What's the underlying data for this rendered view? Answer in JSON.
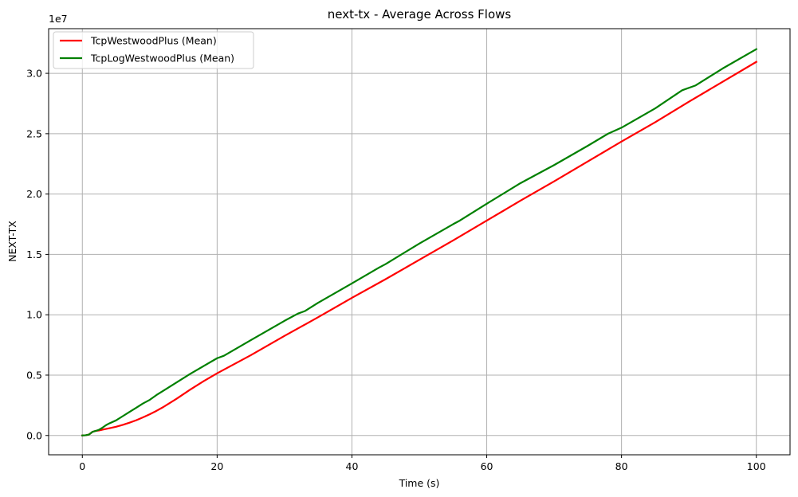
{
  "chart_data": {
    "type": "line",
    "title": "next-tx - Average Across Flows",
    "xlabel": "Time (s)",
    "ylabel": "NEXT-TX",
    "y_offset_label": "1e7",
    "y_scale": 10000000,
    "xlim": [
      -5,
      105
    ],
    "ylim": [
      -1600000,
      33700000
    ],
    "x_ticks": [
      0,
      20,
      40,
      60,
      80,
      100
    ],
    "x_tick_labels": [
      "0",
      "20",
      "40",
      "60",
      "80",
      "100"
    ],
    "y_ticks": [
      0,
      5000000,
      10000000,
      15000000,
      20000000,
      25000000,
      30000000
    ],
    "y_tick_labels": [
      "0.0",
      "0.5",
      "1.0",
      "1.5",
      "2.0",
      "2.5",
      "3.0"
    ],
    "grid": true,
    "legend_position": "top-left",
    "series": [
      {
        "name": "TcpWestwoodPlus (Mean)",
        "color": "#ff0000",
        "x": [
          0,
          0.5,
          1,
          1.5,
          2,
          2.5,
          3,
          4,
          5,
          6,
          7,
          8,
          9,
          10,
          11,
          12,
          14,
          16,
          18,
          20,
          25,
          30,
          35,
          40,
          45,
          50,
          55,
          60,
          65,
          70,
          75,
          80,
          85,
          90,
          95,
          100
        ],
        "y": [
          0,
          20000,
          80000,
          300000,
          380000,
          420000,
          480000,
          600000,
          720000,
          880000,
          1060000,
          1260000,
          1500000,
          1760000,
          2040000,
          2350000,
          3050000,
          3800000,
          4500000,
          5150000,
          6650000,
          8250000,
          9800000,
          11400000,
          12950000,
          14550000,
          16150000,
          17800000,
          19450000,
          21050000,
          22700000,
          24350000,
          25950000,
          27650000,
          29300000,
          30950000
        ]
      },
      {
        "name": "TcpLogWestwoodPlus (Mean)",
        "color": "#008000",
        "x": [
          0,
          0.5,
          1,
          1.5,
          2,
          2.5,
          3,
          3.5,
          4,
          5,
          6,
          7,
          8,
          9,
          10,
          11,
          12,
          14,
          16,
          18,
          20,
          21,
          25,
          30,
          32,
          33,
          35,
          40,
          44,
          45,
          50,
          55,
          56,
          60,
          65,
          67,
          70,
          75,
          78,
          80,
          85,
          89,
          91,
          95,
          100
        ],
        "y": [
          0,
          20000,
          80000,
          300000,
          380000,
          480000,
          650000,
          850000,
          1000000,
          1250000,
          1600000,
          1950000,
          2300000,
          2650000,
          2950000,
          3350000,
          3700000,
          4400000,
          5100000,
          5750000,
          6400000,
          6600000,
          7900000,
          9500000,
          10100000,
          10300000,
          11000000,
          12600000,
          13900000,
          14200000,
          15900000,
          17500000,
          17800000,
          19200000,
          20900000,
          21500000,
          22400000,
          24000000,
          25000000,
          25500000,
          27100000,
          28600000,
          29000000,
          30400000,
          32000000
        ]
      }
    ]
  }
}
